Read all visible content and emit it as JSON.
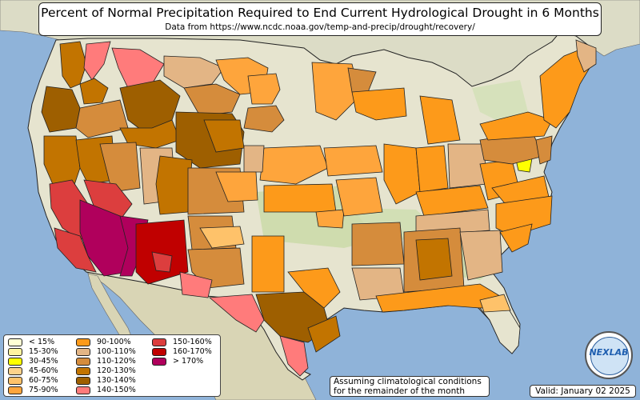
{
  "title": "Percent of Normal Precipitation Required to End Current Hydrological Drought in 6 Months",
  "subtitle": "Data from https://www.ncdc.noaa.gov/temp-and-precip/drought/recovery/",
  "note_lines": [
    "Assuming climatological conditions",
    "for the remainder of the month"
  ],
  "valid": "Valid: January 02 2025",
  "logo_text": "NEXLAB",
  "colors": {
    "ocean": "#8fb3d9",
    "land": "#e6e4cf",
    "land_green": "#c9d9a8",
    "border": "#222222"
  },
  "legend": [
    {
      "label": "< 15%",
      "color": "#ffffd4"
    },
    {
      "label": "15-30%",
      "color": "#fff3a0"
    },
    {
      "label": "30-45%",
      "color": "#ffff00"
    },
    {
      "label": "45-60%",
      "color": "#fdd28a"
    },
    {
      "label": "60-75%",
      "color": "#fec26a"
    },
    {
      "label": "75-90%",
      "color": "#fea53c"
    },
    {
      "label": "90-100%",
      "color": "#fd9a1a"
    },
    {
      "label": "100-110%",
      "color": "#e3b585"
    },
    {
      "label": "110-120%",
      "color": "#d58c3c"
    },
    {
      "label": "120-130%",
      "color": "#c27400"
    },
    {
      "label": "130-140%",
      "color": "#9e5f00"
    },
    {
      "label": "140-150%",
      "color": "#ff7b7b"
    },
    {
      "label": "150-160%",
      "color": "#dc3e3e"
    },
    {
      "label": "160-170%",
      "color": "#c00000"
    },
    {
      "label": "> 170%",
      "color": "#b0005c"
    }
  ]
}
